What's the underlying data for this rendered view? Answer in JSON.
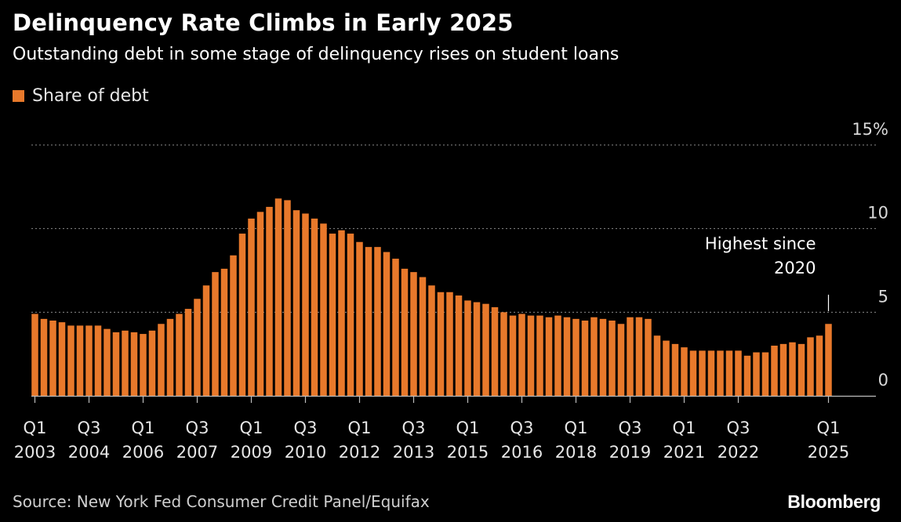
{
  "title": "Delinquency Rate Climbs in Early 2025",
  "subtitle": "Outstanding debt in some stage of delinquency rises on student loans",
  "legend": {
    "label": "Share of debt",
    "color": "#e8792b"
  },
  "source": "Source: New York Fed Consumer Credit Panel/Equifax",
  "brand": "Bloomberg",
  "colors": {
    "bar": "#e8792b",
    "background": "#000000",
    "grid": "#8a8a8a",
    "text": "#ffffff"
  },
  "chart_data": {
    "type": "bar",
    "title": "Delinquency Rate Climbs in Early 2025",
    "subtitle": "Outstanding debt in some stage of delinquency rises on student loans",
    "xlabel": "",
    "ylabel": "",
    "ylim": [
      0,
      15
    ],
    "grid": true,
    "legend_position": "top-left",
    "y_ticks": [
      {
        "value": 15,
        "label": "15%"
      },
      {
        "value": 10,
        "label": "10"
      },
      {
        "value": 5,
        "label": "5"
      },
      {
        "value": 0,
        "label": "0"
      }
    ],
    "x_ticks": [
      {
        "index": 0,
        "label": [
          "Q1",
          "2003"
        ]
      },
      {
        "index": 6,
        "label": [
          "Q3",
          "2004"
        ]
      },
      {
        "index": 12,
        "label": [
          "Q1",
          "2006"
        ]
      },
      {
        "index": 18,
        "label": [
          "Q3",
          "2007"
        ]
      },
      {
        "index": 24,
        "label": [
          "Q1",
          "2009"
        ]
      },
      {
        "index": 30,
        "label": [
          "Q3",
          "2010"
        ]
      },
      {
        "index": 36,
        "label": [
          "Q1",
          "2012"
        ]
      },
      {
        "index": 42,
        "label": [
          "Q3",
          "2013"
        ]
      },
      {
        "index": 48,
        "label": [
          "Q1",
          "2015"
        ]
      },
      {
        "index": 54,
        "label": [
          "Q3",
          "2016"
        ]
      },
      {
        "index": 60,
        "label": [
          "Q1",
          "2018"
        ]
      },
      {
        "index": 66,
        "label": [
          "Q3",
          "2019"
        ]
      },
      {
        "index": 72,
        "label": [
          "Q1",
          "2021"
        ]
      },
      {
        "index": 78,
        "label": [
          "Q3",
          "2022"
        ]
      },
      {
        "index": 88,
        "label": [
          "Q1",
          "2025"
        ]
      }
    ],
    "categories": [
      "Q1 2003",
      "Q2 2003",
      "Q3 2003",
      "Q4 2003",
      "Q1 2004",
      "Q2 2004",
      "Q3 2004",
      "Q4 2004",
      "Q1 2005",
      "Q2 2005",
      "Q3 2005",
      "Q4 2005",
      "Q1 2006",
      "Q2 2006",
      "Q3 2006",
      "Q4 2006",
      "Q1 2007",
      "Q2 2007",
      "Q3 2007",
      "Q4 2007",
      "Q1 2008",
      "Q2 2008",
      "Q3 2008",
      "Q4 2008",
      "Q1 2009",
      "Q2 2009",
      "Q3 2009",
      "Q4 2009",
      "Q1 2010",
      "Q2 2010",
      "Q3 2010",
      "Q4 2010",
      "Q1 2011",
      "Q2 2011",
      "Q3 2011",
      "Q4 2011",
      "Q1 2012",
      "Q2 2012",
      "Q3 2012",
      "Q4 2012",
      "Q1 2013",
      "Q2 2013",
      "Q3 2013",
      "Q4 2013",
      "Q1 2014",
      "Q2 2014",
      "Q3 2014",
      "Q4 2014",
      "Q1 2015",
      "Q2 2015",
      "Q3 2015",
      "Q4 2015",
      "Q1 2016",
      "Q2 2016",
      "Q3 2016",
      "Q4 2016",
      "Q1 2017",
      "Q2 2017",
      "Q3 2017",
      "Q4 2017",
      "Q1 2018",
      "Q2 2018",
      "Q3 2018",
      "Q4 2018",
      "Q1 2019",
      "Q2 2019",
      "Q3 2019",
      "Q4 2019",
      "Q1 2020",
      "Q2 2020",
      "Q3 2020",
      "Q4 2020",
      "Q1 2021",
      "Q2 2021",
      "Q3 2021",
      "Q4 2021",
      "Q1 2022",
      "Q2 2022",
      "Q3 2022",
      "Q4 2022",
      "Q1 2023",
      "Q2 2023",
      "Q3 2023",
      "Q4 2023",
      "Q1 2024",
      "Q2 2024",
      "Q3 2024",
      "Q4 2024",
      "Q1 2025"
    ],
    "series": [
      {
        "name": "Share of debt",
        "values": [
          4.9,
          4.6,
          4.5,
          4.4,
          4.2,
          4.2,
          4.2,
          4.2,
          4.0,
          3.8,
          3.9,
          3.8,
          3.7,
          3.9,
          4.3,
          4.6,
          4.9,
          5.2,
          5.8,
          6.6,
          7.4,
          7.6,
          8.4,
          9.7,
          10.6,
          11.0,
          11.3,
          11.8,
          11.7,
          11.1,
          10.9,
          10.6,
          10.3,
          9.7,
          9.9,
          9.7,
          9.2,
          8.9,
          8.9,
          8.6,
          8.2,
          7.6,
          7.4,
          7.1,
          6.6,
          6.2,
          6.2,
          6.0,
          5.7,
          5.6,
          5.5,
          5.3,
          5.0,
          4.8,
          4.9,
          4.8,
          4.8,
          4.7,
          4.8,
          4.7,
          4.6,
          4.5,
          4.7,
          4.6,
          4.5,
          4.3,
          4.7,
          4.7,
          4.6,
          3.6,
          3.3,
          3.1,
          2.9,
          2.7,
          2.7,
          2.7,
          2.7,
          2.7,
          2.7,
          2.4,
          2.6,
          2.6,
          3.0,
          3.1,
          3.2,
          3.1,
          3.5,
          3.6,
          4.3
        ]
      }
    ],
    "annotations": [
      {
        "text": [
          "Highest since",
          "2020"
        ],
        "index": 88
      }
    ]
  }
}
